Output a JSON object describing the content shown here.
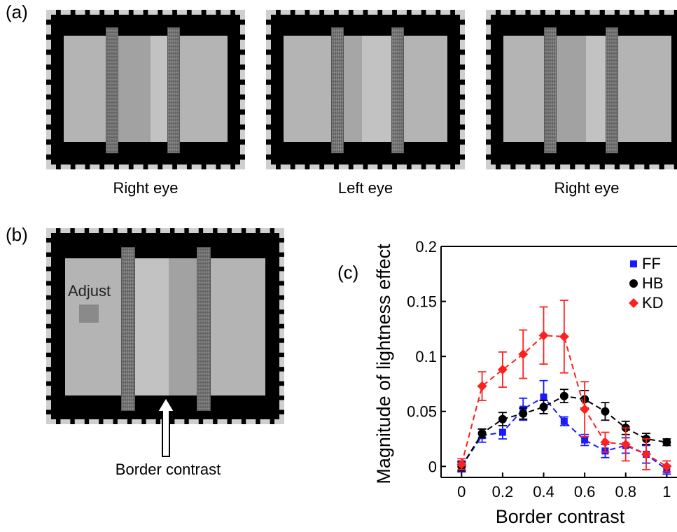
{
  "panels": {
    "a": {
      "letter": "(a)",
      "captions": [
        "Right eye",
        "Left eye",
        "Right eye"
      ]
    },
    "b": {
      "letter": "(b)",
      "adjust_label": "Adjust",
      "arrow_label": "Border contrast"
    },
    "c": {
      "letter": "(c)"
    }
  },
  "colors": {
    "frame": "#000000",
    "background_field": "#b4b4b4",
    "dark_stripe": "#a2a2a2",
    "light_stripe": "#c2c2c2",
    "FF": "#1a1aff",
    "HB": "#000000",
    "KD": "#ff2020"
  },
  "chart_data": {
    "type": "line",
    "title": "",
    "xlabel": "Border contrast",
    "ylabel": "Magnitude of lightness effect",
    "xlim": [
      -0.1,
      1.05
    ],
    "ylim": [
      -0.01,
      0.2
    ],
    "xticks": [
      "0",
      "0.2",
      "0.4",
      "0.6",
      "0.8",
      "1"
    ],
    "yticks": [
      "0",
      "0.05",
      "0.1",
      "0.15",
      "0.2"
    ],
    "legend": {
      "placement": "top-right",
      "entries": [
        "FF",
        "HB",
        "KD"
      ]
    },
    "x": [
      0,
      0.1,
      0.2,
      0.3,
      0.4,
      0.5,
      0.6,
      0.7,
      0.8,
      0.9,
      1.0
    ],
    "series": [
      {
        "name": "FF",
        "marker": "square",
        "values": [
          0.0,
          0.028,
          0.031,
          0.052,
          0.063,
          0.041,
          0.024,
          0.014,
          0.019,
          0.011,
          -0.003
        ],
        "errors": [
          0.005,
          0.006,
          0.006,
          0.01,
          0.015,
          0.004,
          0.005,
          0.006,
          0.007,
          0.008,
          0.004
        ]
      },
      {
        "name": "HB",
        "marker": "circle",
        "values": [
          0.0,
          0.03,
          0.043,
          0.048,
          0.054,
          0.064,
          0.061,
          0.05,
          0.035,
          0.025,
          0.022
        ],
        "errors": [
          0.004,
          0.004,
          0.006,
          0.005,
          0.006,
          0.006,
          0.008,
          0.008,
          0.006,
          0.005,
          0.003
        ]
      },
      {
        "name": "KD",
        "marker": "diamond",
        "values": [
          0.002,
          0.073,
          0.088,
          0.102,
          0.119,
          0.118,
          0.052,
          0.022,
          0.02,
          0.011,
          0.0
        ],
        "errors": [
          0.005,
          0.013,
          0.016,
          0.022,
          0.026,
          0.033,
          0.025,
          0.009,
          0.015,
          0.014,
          0.005
        ]
      }
    ]
  }
}
